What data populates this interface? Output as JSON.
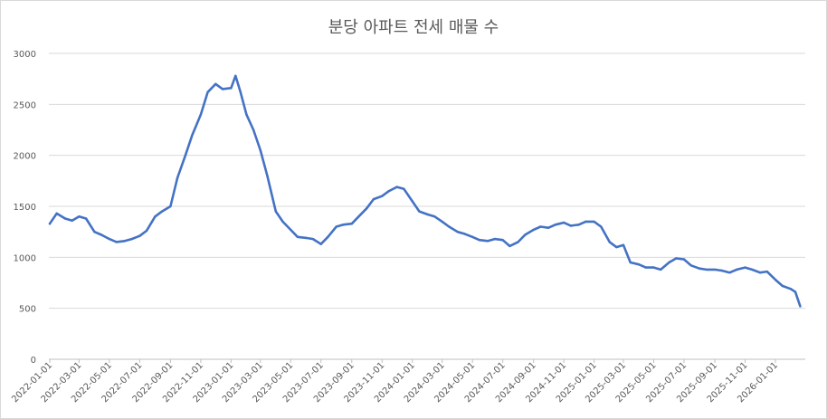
{
  "chart_data": {
    "type": "line",
    "title": "분당 아파트 전세 매물 수",
    "xlabel": "",
    "ylabel": "",
    "ylim": [
      0,
      3000
    ],
    "yticks": [
      0,
      500,
      1000,
      1500,
      2000,
      2500,
      3000
    ],
    "grid": true,
    "legend": "none",
    "x_tick_labels": [
      "2022-01-01",
      "2022-03-01",
      "2022-05-01",
      "2022-07-01",
      "2022-09-01",
      "2022-11-01",
      "2023-01-01",
      "2023-03-01",
      "2023-05-01",
      "2023-07-01",
      "2023-09-01",
      "2023-11-01",
      "2024-01-01",
      "2024-03-01",
      "2024-05-01",
      "2024-07-01",
      "2024-09-01",
      "2024-11-01",
      "2025-01-01",
      "2025-03-01",
      "2025-05-01",
      "2025-07-01",
      "2025-09-01",
      "2025-11-01",
      "2026-01-01"
    ],
    "line_color": "#4472c4",
    "series": [
      {
        "x": [
          "2022-01-01",
          "2022-01-15",
          "2022-02-01",
          "2022-02-15",
          "2022-03-01",
          "2022-03-15",
          "2022-04-01",
          "2022-04-15",
          "2022-05-01",
          "2022-05-15",
          "2022-06-01",
          "2022-06-15",
          "2022-07-01",
          "2022-07-15",
          "2022-08-01",
          "2022-08-15",
          "2022-09-01",
          "2022-09-15",
          "2022-10-01",
          "2022-10-15",
          "2022-11-01",
          "2022-11-15",
          "2022-12-01",
          "2022-12-15",
          "2023-01-01",
          "2023-01-10",
          "2023-01-20",
          "2023-02-01",
          "2023-02-15",
          "2023-03-01",
          "2023-03-15",
          "2023-04-01",
          "2023-04-15",
          "2023-05-01",
          "2023-05-15",
          "2023-06-01",
          "2023-06-15",
          "2023-07-01",
          "2023-07-15",
          "2023-08-01",
          "2023-08-15",
          "2023-09-01",
          "2023-09-15",
          "2023-10-01",
          "2023-10-15",
          "2023-11-01",
          "2023-11-15",
          "2023-12-01",
          "2023-12-15",
          "2024-01-01",
          "2024-01-15",
          "2024-02-01",
          "2024-02-15",
          "2024-03-01",
          "2024-03-15",
          "2024-04-01",
          "2024-04-15",
          "2024-05-01",
          "2024-05-15",
          "2024-06-01",
          "2024-06-15",
          "2024-07-01",
          "2024-07-15",
          "2024-08-01",
          "2024-08-15",
          "2024-09-01",
          "2024-09-15",
          "2024-10-01",
          "2024-10-15",
          "2024-11-01",
          "2024-11-15",
          "2024-12-01",
          "2024-12-15",
          "2025-01-01",
          "2025-01-15",
          "2025-02-01",
          "2025-02-15",
          "2025-03-01",
          "2025-03-15",
          "2025-04-01",
          "2025-04-15",
          "2025-05-01",
          "2025-05-15",
          "2025-06-01",
          "2025-06-15",
          "2025-07-01",
          "2025-07-15",
          "2025-08-01",
          "2025-08-15",
          "2025-09-01",
          "2025-09-15",
          "2025-10-01",
          "2025-10-15",
          "2025-11-01",
          "2025-11-15",
          "2025-12-01",
          "2025-12-15",
          "2026-01-01",
          "2026-01-15",
          "2026-02-01",
          "2026-02-10",
          "2026-02-20"
        ],
        "values": [
          1330,
          1430,
          1380,
          1360,
          1400,
          1380,
          1250,
          1220,
          1180,
          1150,
          1160,
          1180,
          1210,
          1260,
          1400,
          1450,
          1500,
          1780,
          2000,
          2200,
          2400,
          2620,
          2700,
          2650,
          2660,
          2780,
          2620,
          2400,
          2250,
          2050,
          1800,
          1450,
          1350,
          1270,
          1200,
          1190,
          1180,
          1130,
          1200,
          1300,
          1320,
          1330,
          1400,
          1480,
          1570,
          1600,
          1650,
          1690,
          1670,
          1550,
          1450,
          1420,
          1400,
          1350,
          1300,
          1250,
          1230,
          1200,
          1170,
          1160,
          1180,
          1170,
          1110,
          1150,
          1220,
          1270,
          1300,
          1290,
          1320,
          1340,
          1310,
          1320,
          1350,
          1350,
          1300,
          1150,
          1100,
          1120,
          950,
          930,
          900,
          900,
          880,
          950,
          990,
          980,
          920,
          890,
          880,
          880,
          870,
          850,
          880,
          900,
          880,
          850,
          860,
          780,
          720,
          690,
          660,
          520
        ]
      }
    ]
  }
}
